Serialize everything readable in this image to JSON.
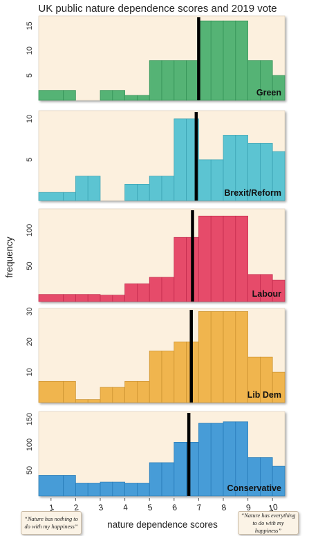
{
  "chart_data": {
    "type": "bar",
    "title": "UK public nature dependence scores and 2019 vote",
    "xlabel": "nature dependence scores",
    "ylabel": "frequency",
    "x_ticks": [
      1,
      2,
      3,
      4,
      5,
      6,
      7,
      8,
      9,
      10
    ],
    "bin_edges": [
      0.5,
      1.5,
      2.0,
      2.5,
      3.0,
      3.5,
      4.0,
      4.5,
      5.0,
      5.5,
      6.0,
      6.5,
      7.0,
      7.5,
      8.0,
      8.5,
      9.0,
      9.5,
      10.0,
      10.5
    ],
    "annotation_left": "“Nature has nothing to do with my happiness”",
    "annotation_right": "“Nature has everything to do with my happiness”",
    "panels": [
      {
        "name": "Green",
        "color": "#3daa66",
        "ylim": [
          0,
          17
        ],
        "yticks": [
          5,
          10,
          15
        ],
        "median": 7.0,
        "values": [
          2,
          2,
          0,
          0,
          2,
          2,
          1,
          1,
          8,
          8,
          8,
          8,
          16,
          16,
          16,
          16,
          8,
          8,
          5
        ]
      },
      {
        "name": "Brexit/Reform",
        "color": "#45bdd0",
        "ylim": [
          0,
          11
        ],
        "yticks": [
          5,
          10
        ],
        "median": 6.9,
        "values": [
          1,
          1,
          3,
          3,
          0,
          0,
          2,
          2,
          3,
          3,
          10,
          10,
          5,
          5,
          8,
          8,
          7,
          7,
          6
        ]
      },
      {
        "name": "Labour",
        "color": "#e3335a",
        "ylim": [
          0,
          130
        ],
        "yticks": [
          50,
          100
        ],
        "median": 6.75,
        "values": [
          10,
          10,
          10,
          10,
          9,
          9,
          25,
          25,
          34,
          34,
          90,
          90,
          120,
          120,
          120,
          120,
          38,
          38,
          30
        ]
      },
      {
        "name": "Lib Dem",
        "color": "#eeac3a",
        "ylim": [
          0,
          31
        ],
        "yticks": [
          10,
          20,
          30
        ],
        "median": 6.7,
        "values": [
          7,
          7,
          1,
          1,
          5,
          5,
          7,
          7,
          17,
          17,
          20,
          20,
          30,
          30,
          30,
          30,
          15,
          15,
          10
        ]
      },
      {
        "name": "Conservative",
        "color": "#2e8fd6",
        "ylim": [
          0,
          165
        ],
        "yticks": [
          50,
          100,
          150
        ],
        "median": 6.6,
        "values": [
          40,
          40,
          25,
          25,
          27,
          27,
          25,
          25,
          65,
          65,
          105,
          105,
          142,
          142,
          145,
          145,
          75,
          75,
          58
        ]
      }
    ]
  }
}
